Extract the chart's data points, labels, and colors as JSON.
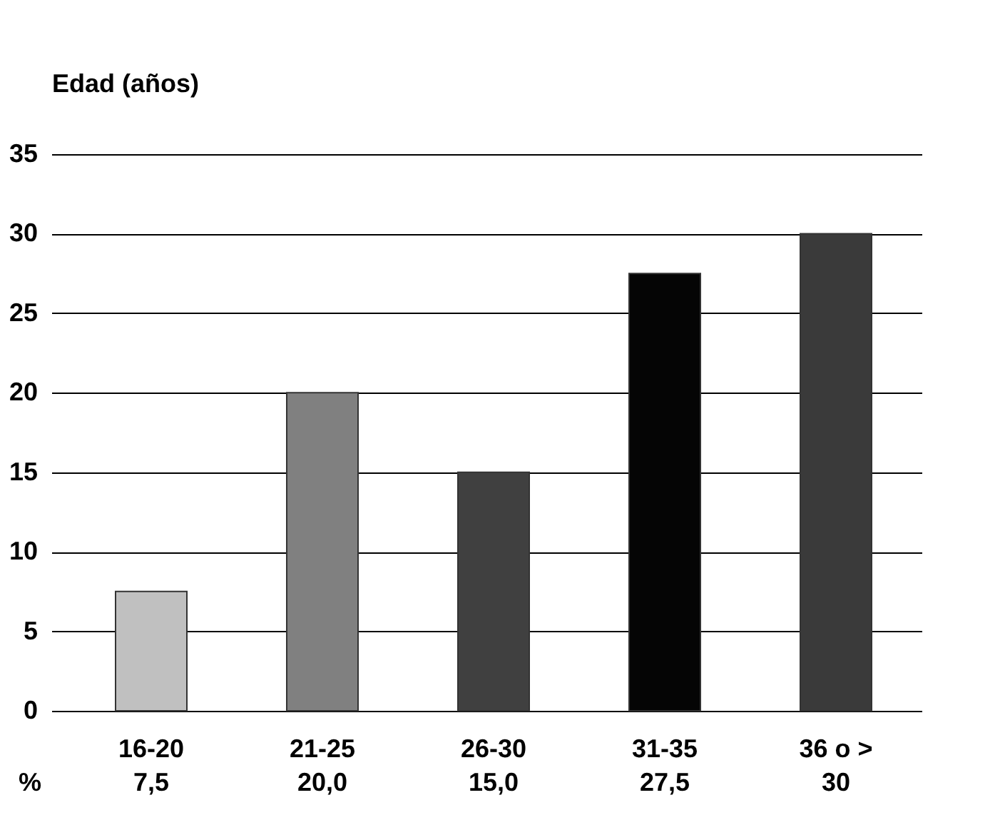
{
  "chart_data": {
    "type": "bar",
    "ylabel": "Edad (años)",
    "categories": [
      "16-20",
      "21-25",
      "26-30",
      "31-35",
      "36 o >"
    ],
    "values": [
      7.5,
      20,
      15,
      27.5,
      30
    ],
    "colors": [
      "#c0c0c0",
      "#808080",
      "#404040",
      "#050505",
      "#3a3a3a"
    ],
    "value_labels": [
      "7,5",
      "20,0",
      "15,0",
      "27,5",
      "30"
    ],
    "annotations": [
      "%"
    ],
    "ylim": [
      0,
      35
    ],
    "yticks": [
      0,
      5,
      10,
      15,
      20,
      25,
      30,
      35
    ],
    "grid": "y"
  }
}
